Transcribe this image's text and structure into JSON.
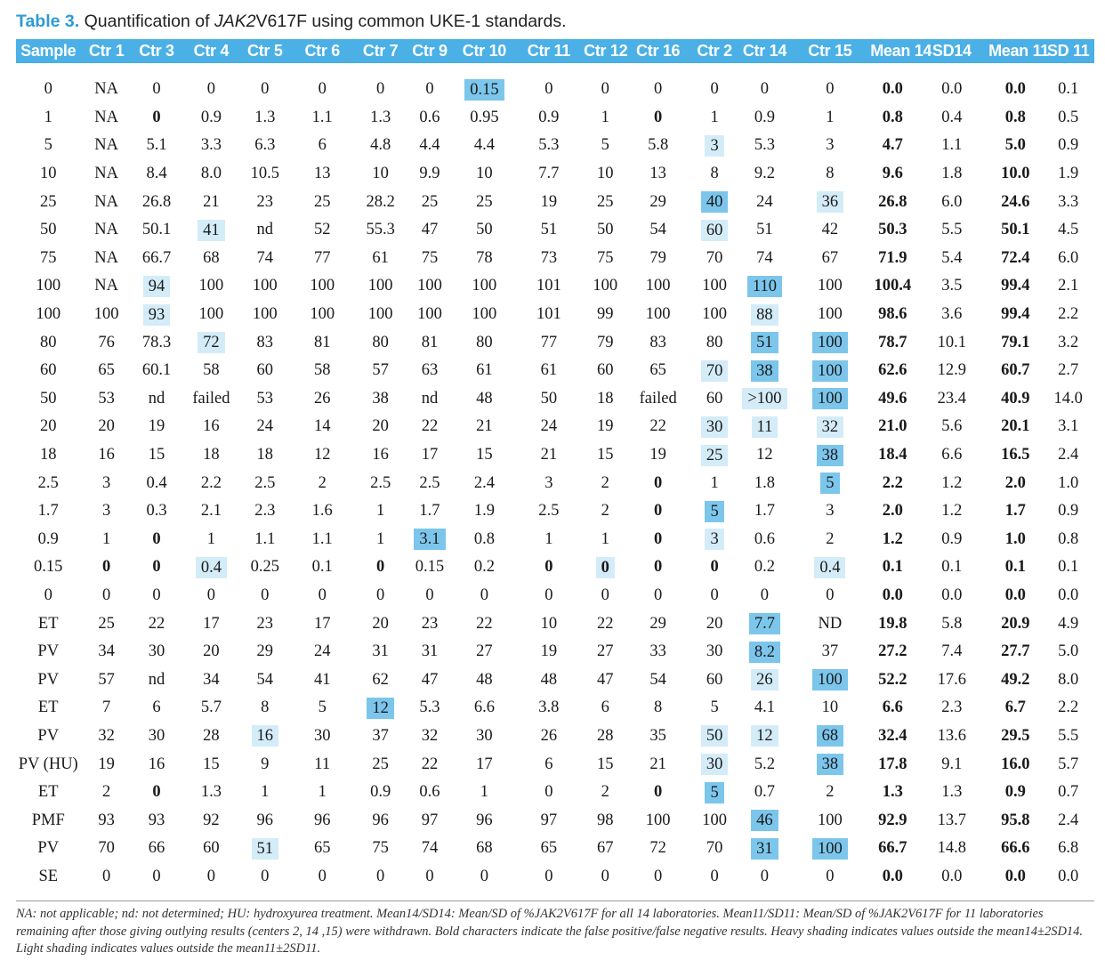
{
  "caption": {
    "label": "Table 3.",
    "text_before": "Quantification of ",
    "gene": "JAK2",
    "text_after": "V617F using common UKE-1 standards."
  },
  "colors": {
    "header_bg": "#4ab0e6",
    "heavy_shade": "#7cc6ec",
    "light_shade": "#d4ecf8",
    "caption_label": "#2e9bd4"
  },
  "header": [
    "Sample",
    "Ctr 1",
    "Ctr 3",
    "Ctr 4",
    "Ctr 5",
    "Ctr 6",
    "Ctr 7",
    "Ctr 9",
    "Ctr 10",
    "Ctr 11",
    "Ctr 12",
    "Ctr 16",
    "Ctr 2",
    "Ctr 14",
    "Ctr 15",
    "Mean 14",
    "SD14",
    "Mean 11",
    "SD 11"
  ],
  "rows": [
    {
      "cells": [
        "0",
        "NA",
        "0",
        "0",
        "0",
        "0",
        "0",
        "0",
        "0.15",
        "0",
        "0",
        "0",
        "0",
        "0",
        "0",
        "0.0",
        "0.0",
        "0.0",
        "0.1"
      ],
      "style": [
        "",
        "",
        "",
        "",
        "",
        "",
        "",
        "",
        "h",
        "",
        "",
        "",
        "",
        "",
        "",
        "b",
        "",
        "b",
        ""
      ]
    },
    {
      "cells": [
        "1",
        "NA",
        "0",
        "0.9",
        "1.3",
        "1.1",
        "1.3",
        "0.6",
        "0.95",
        "0.9",
        "1",
        "0",
        "1",
        "0.9",
        "1",
        "0.8",
        "0.4",
        "0.8",
        "0.5"
      ],
      "style": [
        "",
        "",
        "b",
        "",
        "",
        "",
        "",
        "",
        "",
        "",
        "",
        "b",
        "",
        "",
        "",
        "b",
        "",
        "b",
        ""
      ]
    },
    {
      "cells": [
        "5",
        "NA",
        "5.1",
        "3.3",
        "6.3",
        "6",
        "4.8",
        "4.4",
        "4.4",
        "5.3",
        "5",
        "5.8",
        "3",
        "5.3",
        "3",
        "4.7",
        "1.1",
        "5.0",
        "0.9"
      ],
      "style": [
        "",
        "",
        "",
        "",
        "",
        "",
        "",
        "",
        "",
        "",
        "",
        "",
        "l",
        "",
        "",
        "b",
        "",
        "b",
        ""
      ]
    },
    {
      "cells": [
        "10",
        "NA",
        "8.4",
        "8.0",
        "10.5",
        "13",
        "10",
        "9.9",
        "10",
        "7.7",
        "10",
        "13",
        "8",
        "9.2",
        "8",
        "9.6",
        "1.8",
        "10.0",
        "1.9"
      ],
      "style": [
        "",
        "",
        "",
        "",
        "",
        "",
        "",
        "",
        "",
        "",
        "",
        "",
        "",
        "",
        "",
        "b",
        "",
        "b",
        ""
      ]
    },
    {
      "cells": [
        "25",
        "NA",
        "26.8",
        "21",
        "23",
        "25",
        "28.2",
        "25",
        "25",
        "19",
        "25",
        "29",
        "40",
        "24",
        "36",
        "26.8",
        "6.0",
        "24.6",
        "3.3"
      ],
      "style": [
        "",
        "",
        "",
        "",
        "",
        "",
        "",
        "",
        "",
        "",
        "",
        "",
        "h",
        "",
        "l",
        "b",
        "",
        "b",
        ""
      ]
    },
    {
      "cells": [
        "50",
        "NA",
        "50.1",
        "41",
        "nd",
        "52",
        "55.3",
        "47",
        "50",
        "51",
        "50",
        "54",
        "60",
        "51",
        "42",
        "50.3",
        "5.5",
        "50.1",
        "4.5"
      ],
      "style": [
        "",
        "",
        "",
        "l",
        "",
        "",
        "",
        "",
        "",
        "",
        "",
        "",
        "l",
        "",
        "",
        "b",
        "",
        "b",
        ""
      ]
    },
    {
      "cells": [
        "75",
        "NA",
        "66.7",
        "68",
        "74",
        "77",
        "61",
        "75",
        "78",
        "73",
        "75",
        "79",
        "70",
        "74",
        "67",
        "71.9",
        "5.4",
        "72.4",
        "6.0"
      ],
      "style": [
        "",
        "",
        "",
        "",
        "",
        "",
        "",
        "",
        "",
        "",
        "",
        "",
        "",
        "",
        "",
        "b",
        "",
        "b",
        ""
      ]
    },
    {
      "cells": [
        "100",
        "NA",
        "94",
        "100",
        "100",
        "100",
        "100",
        "100",
        "100",
        "101",
        "100",
        "100",
        "100",
        "110",
        "100",
        "100.4",
        "3.5",
        "99.4",
        "2.1"
      ],
      "style": [
        "",
        "",
        "l",
        "",
        "",
        "",
        "",
        "",
        "",
        "",
        "",
        "",
        "",
        "h",
        "",
        "b",
        "",
        "b",
        ""
      ]
    },
    {
      "cells": [
        "100",
        "100",
        "93",
        "100",
        "100",
        "100",
        "100",
        "100",
        "100",
        "101",
        "99",
        "100",
        "100",
        "88",
        "100",
        "98.6",
        "3.6",
        "99.4",
        "2.2"
      ],
      "style": [
        "",
        "",
        "l",
        "",
        "",
        "",
        "",
        "",
        "",
        "",
        "",
        "",
        "",
        "l",
        "",
        "b",
        "",
        "b",
        ""
      ]
    },
    {
      "cells": [
        "80",
        "76",
        "78.3",
        "72",
        "83",
        "81",
        "80",
        "81",
        "80",
        "77",
        "79",
        "83",
        "80",
        "51",
        "100",
        "78.7",
        "10.1",
        "79.1",
        "3.2"
      ],
      "style": [
        "",
        "",
        "",
        "l",
        "",
        "",
        "",
        "",
        "",
        "",
        "",
        "",
        "",
        "h",
        "h",
        "b",
        "",
        "b",
        ""
      ]
    },
    {
      "cells": [
        "60",
        "65",
        "60.1",
        "58",
        "60",
        "58",
        "57",
        "63",
        "61",
        "61",
        "60",
        "65",
        "70",
        "38",
        "100",
        "62.6",
        "12.9",
        "60.7",
        "2.7"
      ],
      "style": [
        "",
        "",
        "",
        "",
        "",
        "",
        "",
        "",
        "",
        "",
        "",
        "",
        "l",
        "h",
        "h",
        "b",
        "",
        "b",
        ""
      ]
    },
    {
      "cells": [
        "50",
        "53",
        "nd",
        "failed",
        "53",
        "26",
        "38",
        "nd",
        "48",
        "50",
        "18",
        "failed",
        "60",
        ">100",
        "100",
        "49.6",
        "23.4",
        "40.9",
        "14.0"
      ],
      "style": [
        "",
        "",
        "",
        "",
        "",
        "",
        "",
        "",
        "",
        "",
        "",
        "",
        "",
        "l",
        "h",
        "b",
        "",
        "b",
        ""
      ]
    },
    {
      "cells": [
        "20",
        "20",
        "19",
        "16",
        "24",
        "14",
        "20",
        "22",
        "21",
        "24",
        "19",
        "22",
        "30",
        "11",
        "32",
        "21.0",
        "5.6",
        "20.1",
        "3.1"
      ],
      "style": [
        "",
        "",
        "",
        "",
        "",
        "",
        "",
        "",
        "",
        "",
        "",
        "",
        "l",
        "l",
        "l",
        "b",
        "",
        "b",
        ""
      ]
    },
    {
      "cells": [
        "18",
        "16",
        "15",
        "18",
        "18",
        "12",
        "16",
        "17",
        "15",
        "21",
        "15",
        "19",
        "25",
        "12",
        "38",
        "18.4",
        "6.6",
        "16.5",
        "2.4"
      ],
      "style": [
        "",
        "",
        "",
        "",
        "",
        "",
        "",
        "",
        "",
        "",
        "",
        "",
        "l",
        "",
        "h",
        "b",
        "",
        "b",
        ""
      ]
    },
    {
      "cells": [
        "2.5",
        "3",
        "0.4",
        "2.2",
        "2.5",
        "2",
        "2.5",
        "2.5",
        "2.4",
        "3",
        "2",
        "0",
        "1",
        "1.8",
        "5",
        "2.2",
        "1.2",
        "2.0",
        "1.0"
      ],
      "style": [
        "",
        "",
        "",
        "",
        "",
        "",
        "",
        "",
        "",
        "",
        "",
        "b",
        "",
        "",
        "h",
        "b",
        "",
        "b",
        ""
      ]
    },
    {
      "cells": [
        "1.7",
        "3",
        "0.3",
        "2.1",
        "2.3",
        "1.6",
        "1",
        "1.7",
        "1.9",
        "2.5",
        "2",
        "0",
        "5",
        "1.7",
        "3",
        "2.0",
        "1.2",
        "1.7",
        "0.9"
      ],
      "style": [
        "",
        "",
        "",
        "",
        "",
        "",
        "",
        "",
        "",
        "",
        "",
        "b",
        "h",
        "",
        "",
        "b",
        "",
        "b",
        ""
      ]
    },
    {
      "cells": [
        "0.9",
        "1",
        "0",
        "1",
        "1.1",
        "1.1",
        "1",
        "3.1",
        "0.8",
        "1",
        "1",
        "0",
        "3",
        "0.6",
        "2",
        "1.2",
        "0.9",
        "1.0",
        "0.8"
      ],
      "style": [
        "",
        "",
        "b",
        "",
        "",
        "",
        "",
        "h",
        "",
        "",
        "",
        "b",
        "l",
        "",
        "",
        "b",
        "",
        "b",
        ""
      ]
    },
    {
      "cells": [
        "0.15",
        "0",
        "0",
        "0.4",
        "0.25",
        "0.1",
        "0",
        "0.15",
        "0.2",
        "0",
        "0",
        "0",
        "0",
        "0.2",
        "0.4",
        "0.1",
        "0.1",
        "0.1",
        "0.1"
      ],
      "style": [
        "",
        "b",
        "b",
        "l",
        "",
        "",
        "b",
        "",
        "",
        "b",
        "lb",
        "b",
        "b",
        "",
        "l",
        "b",
        "",
        "b",
        ""
      ]
    },
    {
      "cells": [
        "0",
        "0",
        "0",
        "0",
        "0",
        "0",
        "0",
        "0",
        "0",
        "0",
        "0",
        "0",
        "0",
        "0",
        "0",
        "0.0",
        "0.0",
        "0.0",
        "0.0"
      ],
      "style": [
        "",
        "",
        "",
        "",
        "",
        "",
        "",
        "",
        "",
        "",
        "",
        "",
        "",
        "",
        "",
        "b",
        "",
        "b",
        ""
      ]
    },
    {
      "cells": [
        "ET",
        "25",
        "22",
        "17",
        "23",
        "17",
        "20",
        "23",
        "22",
        "10",
        "22",
        "29",
        "20",
        "7.7",
        "ND",
        "19.8",
        "5.8",
        "20.9",
        "4.9"
      ],
      "style": [
        "",
        "",
        "",
        "",
        "",
        "",
        "",
        "",
        "",
        "",
        "",
        "",
        "",
        "h",
        "",
        "b",
        "",
        "b",
        ""
      ]
    },
    {
      "cells": [
        "PV",
        "34",
        "30",
        "20",
        "29",
        "24",
        "31",
        "31",
        "27",
        "19",
        "27",
        "33",
        "30",
        "8.2",
        "37",
        "27.2",
        "7.4",
        "27.7",
        "5.0"
      ],
      "style": [
        "",
        "",
        "",
        "",
        "",
        "",
        "",
        "",
        "",
        "",
        "",
        "",
        "",
        "h",
        "",
        "b",
        "",
        "b",
        ""
      ]
    },
    {
      "cells": [
        "PV",
        "57",
        "nd",
        "34",
        "54",
        "41",
        "62",
        "47",
        "48",
        "48",
        "47",
        "54",
        "60",
        "26",
        "100",
        "52.2",
        "17.6",
        "49.2",
        "8.0"
      ],
      "style": [
        "",
        "",
        "",
        "",
        "",
        "",
        "",
        "",
        "",
        "",
        "",
        "",
        "",
        "l",
        "h",
        "b",
        "",
        "b",
        ""
      ]
    },
    {
      "cells": [
        "ET",
        "7",
        "6",
        "5.7",
        "8",
        "5",
        "12",
        "5.3",
        "6.6",
        "3.8",
        "6",
        "8",
        "5",
        "4.1",
        "10",
        "6.6",
        "2.3",
        "6.7",
        "2.2"
      ],
      "style": [
        "",
        "",
        "",
        "",
        "",
        "",
        "h",
        "",
        "",
        "",
        "",
        "",
        "",
        "",
        "",
        "b",
        "",
        "b",
        ""
      ]
    },
    {
      "cells": [
        "PV",
        "32",
        "30",
        "28",
        "16",
        "30",
        "37",
        "32",
        "30",
        "26",
        "28",
        "35",
        "50",
        "12",
        "68",
        "32.4",
        "13.6",
        "29.5",
        "5.5"
      ],
      "style": [
        "",
        "",
        "",
        "",
        "l",
        "",
        "",
        "",
        "",
        "",
        "",
        "",
        "l",
        "l",
        "h",
        "b",
        "",
        "b",
        ""
      ]
    },
    {
      "cells": [
        "PV (HU)",
        "19",
        "16",
        "15",
        "9",
        "11",
        "25",
        "22",
        "17",
        "6",
        "15",
        "21",
        "30",
        "5.2",
        "38",
        "17.8",
        "9.1",
        "16.0",
        "5.7"
      ],
      "style": [
        "",
        "",
        "",
        "",
        "",
        "",
        "",
        "",
        "",
        "",
        "",
        "",
        "l",
        "",
        "h",
        "b",
        "",
        "b",
        ""
      ]
    },
    {
      "cells": [
        "ET",
        "2",
        "0",
        "1.3",
        "1",
        "1",
        "0.9",
        "0.6",
        "1",
        "0",
        "2",
        "0",
        "5",
        "0.7",
        "2",
        "1.3",
        "1.3",
        "0.9",
        "0.7"
      ],
      "style": [
        "",
        "",
        "b",
        "",
        "",
        "",
        "",
        "",
        "",
        "",
        "",
        "b",
        "h",
        "",
        "",
        "b",
        "",
        "b",
        ""
      ]
    },
    {
      "cells": [
        "PMF",
        "93",
        "93",
        "92",
        "96",
        "96",
        "96",
        "97",
        "96",
        "97",
        "98",
        "100",
        "100",
        "46",
        "100",
        "92.9",
        "13.7",
        "95.8",
        "2.4"
      ],
      "style": [
        "",
        "",
        "",
        "",
        "",
        "",
        "",
        "",
        "",
        "",
        "",
        "",
        "",
        "h",
        "",
        "b",
        "",
        "b",
        ""
      ]
    },
    {
      "cells": [
        "PV",
        "70",
        "66",
        "60",
        "51",
        "65",
        "75",
        "74",
        "68",
        "65",
        "67",
        "72",
        "70",
        "31",
        "100",
        "66.7",
        "14.8",
        "66.6",
        "6.8"
      ],
      "style": [
        "",
        "",
        "",
        "",
        "l",
        "",
        "",
        "",
        "",
        "",
        "",
        "",
        "",
        "h",
        "h",
        "b",
        "",
        "b",
        ""
      ]
    },
    {
      "cells": [
        "SE",
        "0",
        "0",
        "0",
        "0",
        "0",
        "0",
        "0",
        "0",
        "0",
        "0",
        "0",
        "0",
        "0",
        "0",
        "0.0",
        "0.0",
        "0.0",
        "0.0"
      ],
      "style": [
        "",
        "",
        "",
        "",
        "",
        "",
        "",
        "",
        "",
        "",
        "",
        "",
        "",
        "",
        "",
        "b",
        "",
        "b",
        ""
      ]
    }
  ],
  "footnote": "NA: not applicable; nd: not determined; HU: hydroxyurea treatment. Mean14/SD14: Mean/SD of %JAK2V617F for all 14 laboratories. Mean11/SD11: Mean/SD of %JAK2V617F for 11 laboratories remaining after those giving outlying results (centers 2, 14 ,15) were withdrawn. Bold characters indicate the false positive/false negative results. Heavy shading indicates values outside the mean14±2SD14. Light shading indicates values outside the mean11±2SD11."
}
